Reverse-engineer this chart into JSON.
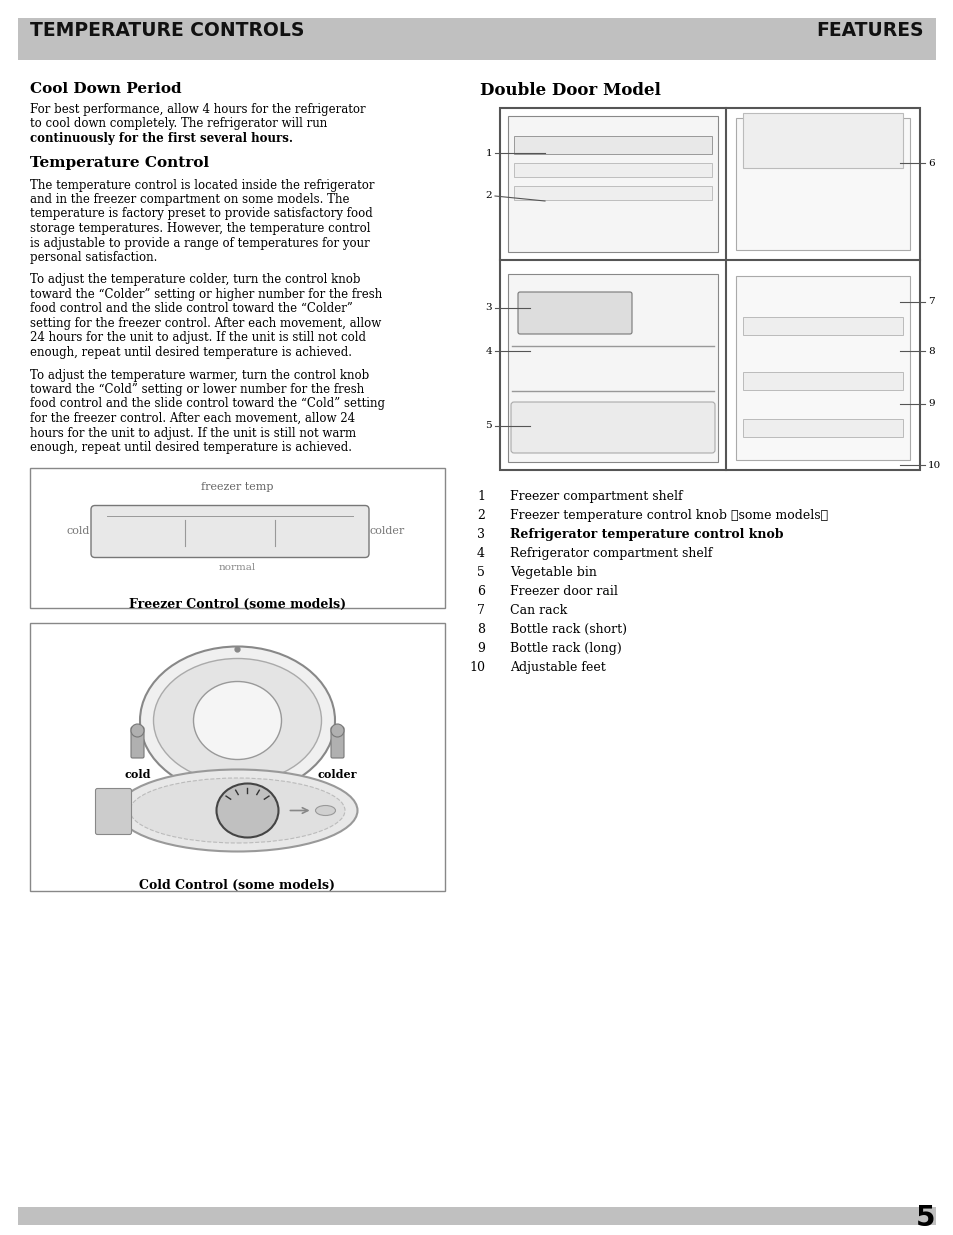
{
  "page_bg": "#ffffff",
  "header_bg": "#c0c0c0",
  "header_left": "TEMPERATURE CONTROLS",
  "header_right": "FEATURES",
  "section1_title": "Cool Down Period",
  "section1_p1a": "For best performance, allow 4 hours for the refrigerator\nto cool down completely. The refrigerator will run\n",
  "section1_p1b": "continuously for the first several hours.",
  "section2_title": "Temperature Control",
  "section2_p1": "The temperature control is located inside the refrigerator\nand in the freezer compartment on some models. The\ntemperature is factory preset to provide satisfactory food\nstorage temperatures. However, the temperature control\nis adjustable to provide a range of temperatures for your\npersonal satisfaction.",
  "section2_p2": "To adjust the temperature colder, turn the control knob\ntoward the “Colder” setting or higher number for the fresh\nfood control and the slide control toward the “Colder”\nsetting for the freezer control. After each movement, allow\n24 hours for the unit to adjust. If the unit is still not cold\nenough, repeat until desired temperature is achieved.",
  "section2_p3": "To adjust the temperature warmer, turn the control knob\ntoward the “Cold” setting or lower number for the fresh\nfood control and the slide control toward the “Cold” setting\nfor the freezer control. After each movement, allow 24\nhours for the unit to adjust. If the unit is still not warm\nenough, repeat until desired temperature is achieved.",
  "freezer_label_top": "freezer temp",
  "freezer_label_left": "cold",
  "freezer_label_right": "colder",
  "freezer_label_bottom": "normal",
  "freezer_caption": "Freezer Control (some models)",
  "cold_label_left": "cold",
  "cold_label_right": "colder",
  "cold_caption": "Cold Control (some models)",
  "right_title": "Double Door Model",
  "list_items": [
    [
      "1",
      "Freezer compartment shelf",
      false
    ],
    [
      "2",
      "Freezer temperature control knob 〈some models〉",
      false
    ],
    [
      "3",
      "Refrigerator temperature control knob",
      true
    ],
    [
      "4",
      "Refrigerator compartment shelf",
      false
    ],
    [
      "5",
      "Vegetable bin",
      false
    ],
    [
      "6",
      "Freezer door rail",
      false
    ],
    [
      "7",
      "Can rack",
      false
    ],
    [
      "8",
      "Bottle rack (short)",
      false
    ],
    [
      "9",
      "Bottle rack (long)",
      false
    ],
    [
      "10",
      "Adjustable feet",
      false
    ]
  ],
  "footer_number": "5",
  "footer_bg": "#c0c0c0"
}
